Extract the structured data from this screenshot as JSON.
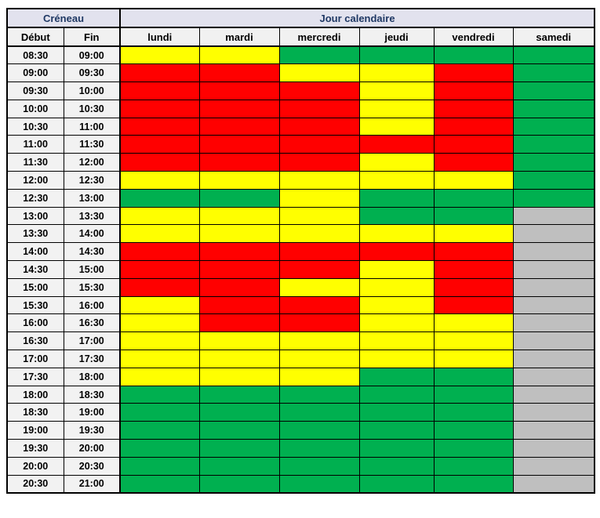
{
  "chart_data": {
    "type": "heatmap",
    "group_header_left": "Créneau",
    "group_header_right": "Jour calendaire",
    "col_debut": "Début",
    "col_fin": "Fin",
    "days": [
      "lundi",
      "mardi",
      "mercredi",
      "jeudi",
      "vendredi",
      "samedi"
    ],
    "cell_colors": {
      "Y": "#FFFF00",
      "R": "#FF0000",
      "G": "#00B050",
      "X": "#BFBFBF"
    },
    "style_colors": {
      "header_top_bg": "#E2E2EE",
      "header_bg": "#F1F1F1",
      "time_col_bg": "#F2F2F2",
      "header_text": "#1F3864",
      "grid": "#000000"
    },
    "rows": [
      {
        "debut": "08:30",
        "fin": "09:00",
        "cells": [
          "Y",
          "Y",
          "G",
          "G",
          "G",
          "G"
        ]
      },
      {
        "debut": "09:00",
        "fin": "09:30",
        "cells": [
          "R",
          "R",
          "Y",
          "Y",
          "R",
          "G"
        ]
      },
      {
        "debut": "09:30",
        "fin": "10:00",
        "cells": [
          "R",
          "R",
          "R",
          "Y",
          "R",
          "G"
        ]
      },
      {
        "debut": "10:00",
        "fin": "10:30",
        "cells": [
          "R",
          "R",
          "R",
          "Y",
          "R",
          "G"
        ]
      },
      {
        "debut": "10:30",
        "fin": "11:00",
        "cells": [
          "R",
          "R",
          "R",
          "Y",
          "R",
          "G"
        ]
      },
      {
        "debut": "11:00",
        "fin": "11:30",
        "cells": [
          "R",
          "R",
          "R",
          "R",
          "R",
          "G"
        ]
      },
      {
        "debut": "11:30",
        "fin": "12:00",
        "cells": [
          "R",
          "R",
          "R",
          "Y",
          "R",
          "G"
        ]
      },
      {
        "debut": "12:00",
        "fin": "12:30",
        "cells": [
          "Y",
          "Y",
          "Y",
          "Y",
          "Y",
          "G"
        ]
      },
      {
        "debut": "12:30",
        "fin": "13:00",
        "cells": [
          "G",
          "G",
          "Y",
          "G",
          "G",
          "G"
        ]
      },
      {
        "debut": "13:00",
        "fin": "13:30",
        "cells": [
          "Y",
          "Y",
          "Y",
          "G",
          "G",
          "X"
        ]
      },
      {
        "debut": "13:30",
        "fin": "14:00",
        "cells": [
          "Y",
          "Y",
          "Y",
          "Y",
          "Y",
          "X"
        ]
      },
      {
        "debut": "14:00",
        "fin": "14:30",
        "cells": [
          "R",
          "R",
          "R",
          "R",
          "R",
          "X"
        ]
      },
      {
        "debut": "14:30",
        "fin": "15:00",
        "cells": [
          "R",
          "R",
          "R",
          "Y",
          "R",
          "X"
        ]
      },
      {
        "debut": "15:00",
        "fin": "15:30",
        "cells": [
          "R",
          "R",
          "Y",
          "Y",
          "R",
          "X"
        ]
      },
      {
        "debut": "15:30",
        "fin": "16:00",
        "cells": [
          "Y",
          "R",
          "R",
          "Y",
          "R",
          "X"
        ]
      },
      {
        "debut": "16:00",
        "fin": "16:30",
        "cells": [
          "Y",
          "R",
          "R",
          "Y",
          "Y",
          "X"
        ]
      },
      {
        "debut": "16:30",
        "fin": "17:00",
        "cells": [
          "Y",
          "Y",
          "Y",
          "Y",
          "Y",
          "X"
        ]
      },
      {
        "debut": "17:00",
        "fin": "17:30",
        "cells": [
          "Y",
          "Y",
          "Y",
          "Y",
          "Y",
          "X"
        ]
      },
      {
        "debut": "17:30",
        "fin": "18:00",
        "cells": [
          "Y",
          "Y",
          "Y",
          "G",
          "G",
          "X"
        ]
      },
      {
        "debut": "18:00",
        "fin": "18:30",
        "cells": [
          "G",
          "G",
          "G",
          "G",
          "G",
          "X"
        ]
      },
      {
        "debut": "18:30",
        "fin": "19:00",
        "cells": [
          "G",
          "G",
          "G",
          "G",
          "G",
          "X"
        ]
      },
      {
        "debut": "19:00",
        "fin": "19:30",
        "cells": [
          "G",
          "G",
          "G",
          "G",
          "G",
          "X"
        ]
      },
      {
        "debut": "19:30",
        "fin": "20:00",
        "cells": [
          "G",
          "G",
          "G",
          "G",
          "G",
          "X"
        ]
      },
      {
        "debut": "20:00",
        "fin": "20:30",
        "cells": [
          "G",
          "G",
          "G",
          "G",
          "G",
          "X"
        ]
      },
      {
        "debut": "20:30",
        "fin": "21:00",
        "cells": [
          "G",
          "G",
          "G",
          "G",
          "G",
          "X"
        ]
      }
    ]
  }
}
